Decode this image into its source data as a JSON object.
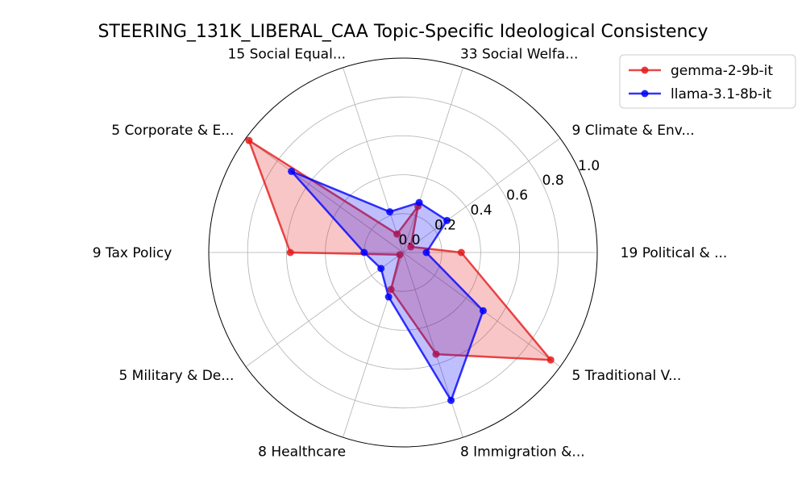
{
  "chart_data": {
    "type": "radar",
    "title": "STEERING_131K_LIBERAL_CAA Topic-Specific Ideological Consistency",
    "categories": [
      "19 Political & ...",
      "9 Climate & Env...",
      "33 Social Welfa...",
      "15 Social Equal...",
      "5 Corporate & E...",
      "9 Tax Policy",
      "5 Military & De...",
      "8 Healthcare",
      "8 Immigration &...",
      "5 Traditional V..."
    ],
    "rlim": [
      0,
      1.0
    ],
    "rticks": [
      0.0,
      0.2,
      0.4,
      0.6,
      0.8,
      1.0
    ],
    "rtick_labels": [
      "0.0",
      "0.2",
      "0.4",
      "0.6",
      "0.8",
      "1.0"
    ],
    "grid": true,
    "legend_position": "top-right",
    "series": [
      {
        "name": "gemma-2-9b-it",
        "color": "#e41a1c",
        "values": [
          0.3,
          0.05,
          0.25,
          0.1,
          0.98,
          0.58,
          0.02,
          0.2,
          0.55,
          0.94
        ]
      },
      {
        "name": "llama-3.1-8b-it",
        "color": "#0000ff",
        "values": [
          0.12,
          0.28,
          0.27,
          0.22,
          0.71,
          0.2,
          0.14,
          0.24,
          0.8,
          0.51
        ]
      }
    ]
  }
}
